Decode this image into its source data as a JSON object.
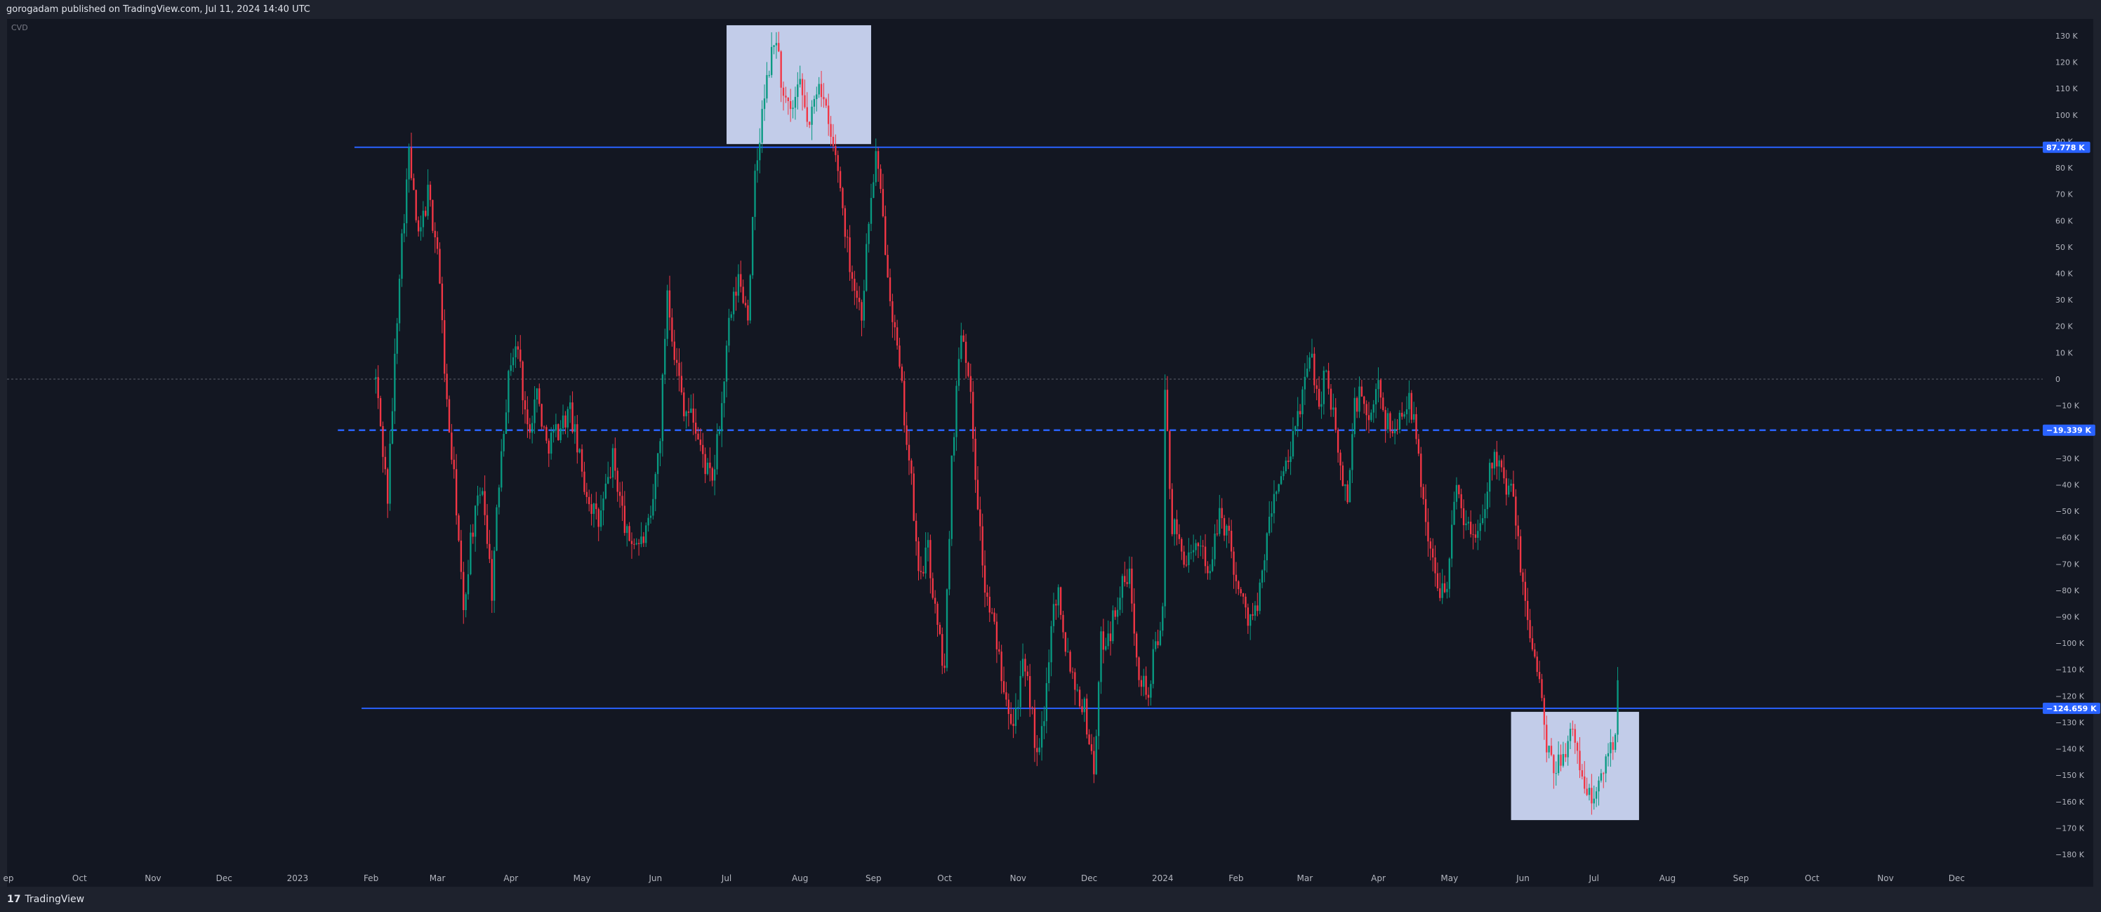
{
  "header": {
    "publish_line": "gorogadam published on TradingView.com, Jul 11, 2024 14:40 UTC"
  },
  "footer": {
    "brand": "TradingView",
    "logo_glyph": "17"
  },
  "chart_data": {
    "type": "candlestick",
    "indicator_label": "CVD",
    "y_unit": "K",
    "ylim": [
      -185,
      137
    ],
    "y_ticks": [
      130,
      120,
      110,
      100,
      90,
      80,
      70,
      60,
      50,
      40,
      30,
      20,
      10,
      0,
      -10,
      -20,
      -30,
      -40,
      -50,
      -60,
      -70,
      -80,
      -90,
      -100,
      -110,
      -120,
      -130,
      -140,
      -150,
      -160,
      -170,
      -180
    ],
    "y_tick_labels": [
      "130 K",
      "120 K",
      "110 K",
      "100 K",
      "90 K",
      "80 K",
      "70 K",
      "60 K",
      "50 K",
      "40 K",
      "30 K",
      "20 K",
      "10 K",
      "0",
      "−10 K",
      "−20 K",
      "−30 K",
      "−40 K",
      "−50 K",
      "−60 K",
      "−70 K",
      "−80 K",
      "−90 K",
      "−100 K",
      "−110 K",
      "−120 K",
      "−130 K",
      "−140 K",
      "−150 K",
      "−160 K",
      "−170 K",
      "−180 K"
    ],
    "x_range": [
      "2022-09-01",
      "2025-01-01"
    ],
    "x_ticks": [
      {
        "date": "2022-09-01",
        "label": "ep"
      },
      {
        "date": "2022-10-01",
        "label": "Oct"
      },
      {
        "date": "2022-11-01",
        "label": "Nov"
      },
      {
        "date": "2022-12-01",
        "label": "Dec"
      },
      {
        "date": "2023-01-01",
        "label": "2023"
      },
      {
        "date": "2023-02-01",
        "label": "Feb"
      },
      {
        "date": "2023-03-01",
        "label": "Mar"
      },
      {
        "date": "2023-04-01",
        "label": "Apr"
      },
      {
        "date": "2023-05-01",
        "label": "May"
      },
      {
        "date": "2023-06-01",
        "label": "Jun"
      },
      {
        "date": "2023-07-01",
        "label": "Jul"
      },
      {
        "date": "2023-08-01",
        "label": "Aug"
      },
      {
        "date": "2023-09-01",
        "label": "Sep"
      },
      {
        "date": "2023-10-01",
        "label": "Oct"
      },
      {
        "date": "2023-11-01",
        "label": "Nov"
      },
      {
        "date": "2023-12-01",
        "label": "Dec"
      },
      {
        "date": "2024-01-01",
        "label": "2024"
      },
      {
        "date": "2024-02-01",
        "label": "Feb"
      },
      {
        "date": "2024-03-01",
        "label": "Mar"
      },
      {
        "date": "2024-04-01",
        "label": "Apr"
      },
      {
        "date": "2024-05-01",
        "label": "May"
      },
      {
        "date": "2024-06-01",
        "label": "Jun"
      },
      {
        "date": "2024-07-01",
        "label": "Jul"
      },
      {
        "date": "2024-08-01",
        "label": "Aug"
      },
      {
        "date": "2024-09-01",
        "label": "Sep"
      },
      {
        "date": "2024-10-01",
        "label": "Oct"
      },
      {
        "date": "2024-11-01",
        "label": "Nov"
      },
      {
        "date": "2024-12-01",
        "label": "Dec"
      }
    ],
    "grid": false,
    "zero_line": {
      "value": 0,
      "style": "dotted",
      "color": "#5d606b"
    },
    "horizontal_lines": [
      {
        "value": 87.778,
        "label": "87.778 K",
        "style": "solid",
        "color": "#2962ff",
        "start": "2023-01-25"
      },
      {
        "value": -19.339,
        "label": "−19.339 K",
        "style": "dashed",
        "color": "#2962ff",
        "start": "2023-01-18"
      },
      {
        "value": -124.659,
        "label": "−124.659 K",
        "style": "solid",
        "color": "#2962ff",
        "start": "2023-01-28"
      }
    ],
    "highlight_boxes": [
      {
        "x_start": "2023-07-01",
        "x_end": "2023-08-31",
        "y_top": 134,
        "y_bottom": 89,
        "color": "#d1dcfb"
      },
      {
        "x_start": "2024-05-27",
        "x_end": "2024-07-20",
        "y_top": -126,
        "y_bottom": -167,
        "color": "#d1dcfb"
      }
    ],
    "colors": {
      "up": "#089981",
      "down": "#f23645"
    },
    "path": [
      [
        "2023-02-03",
        0
      ],
      [
        "2023-02-08",
        -45
      ],
      [
        "2023-02-13",
        42
      ],
      [
        "2023-02-17",
        85
      ],
      [
        "2023-02-21",
        52
      ],
      [
        "2023-02-25",
        70
      ],
      [
        "2023-03-01",
        50
      ],
      [
        "2023-03-05",
        -10
      ],
      [
        "2023-03-09",
        -48
      ],
      [
        "2023-03-12",
        -90
      ],
      [
        "2023-03-15",
        -60
      ],
      [
        "2023-03-20",
        -40
      ],
      [
        "2023-03-24",
        -80
      ],
      [
        "2023-03-28",
        -25
      ],
      [
        "2023-04-01",
        8
      ],
      [
        "2023-04-04",
        12
      ],
      [
        "2023-04-08",
        -20
      ],
      [
        "2023-04-12",
        -5
      ],
      [
        "2023-04-16",
        -25
      ],
      [
        "2023-04-20",
        -20
      ],
      [
        "2023-04-26",
        -12
      ],
      [
        "2023-05-02",
        -40
      ],
      [
        "2023-05-08",
        -55
      ],
      [
        "2023-05-14",
        -30
      ],
      [
        "2023-05-20",
        -60
      ],
      [
        "2023-05-26",
        -62
      ],
      [
        "2023-05-30",
        -55
      ],
      [
        "2023-06-03",
        -20
      ],
      [
        "2023-06-06",
        35
      ],
      [
        "2023-06-09",
        10
      ],
      [
        "2023-06-13",
        -10
      ],
      [
        "2023-06-17",
        -15
      ],
      [
        "2023-06-21",
        -30
      ],
      [
        "2023-06-25",
        -40
      ],
      [
        "2023-06-29",
        -10
      ],
      [
        "2023-07-02",
        20
      ],
      [
        "2023-07-06",
        38
      ],
      [
        "2023-07-10",
        25
      ],
      [
        "2023-07-13",
        75
      ],
      [
        "2023-07-16",
        100
      ],
      [
        "2023-07-19",
        118
      ],
      [
        "2023-07-22",
        130
      ],
      [
        "2023-07-25",
        105
      ],
      [
        "2023-07-28",
        100
      ],
      [
        "2023-08-01",
        110
      ],
      [
        "2023-08-05",
        95
      ],
      [
        "2023-08-09",
        115
      ],
      [
        "2023-08-13",
        95
      ],
      [
        "2023-08-17",
        80
      ],
      [
        "2023-08-21",
        50
      ],
      [
        "2023-08-24",
        35
      ],
      [
        "2023-08-27",
        25
      ],
      [
        "2023-08-30",
        60
      ],
      [
        "2023-09-02",
        85
      ],
      [
        "2023-09-05",
        60
      ],
      [
        "2023-09-09",
        25
      ],
      [
        "2023-09-13",
        -5
      ],
      [
        "2023-09-17",
        -40
      ],
      [
        "2023-09-20",
        -75
      ],
      [
        "2023-09-24",
        -65
      ],
      [
        "2023-09-28",
        -95
      ],
      [
        "2023-10-01",
        -110
      ],
      [
        "2023-10-04",
        -30
      ],
      [
        "2023-10-08",
        20
      ],
      [
        "2023-10-11",
        5
      ],
      [
        "2023-10-14",
        -35
      ],
      [
        "2023-10-18",
        -80
      ],
      [
        "2023-10-22",
        -95
      ],
      [
        "2023-10-26",
        -115
      ],
      [
        "2023-10-30",
        -130
      ],
      [
        "2023-11-03",
        -110
      ],
      [
        "2023-11-06",
        -120
      ],
      [
        "2023-11-09",
        -145
      ],
      [
        "2023-11-12",
        -130
      ],
      [
        "2023-11-15",
        -90
      ],
      [
        "2023-11-18",
        -80
      ],
      [
        "2023-11-21",
        -100
      ],
      [
        "2023-11-25",
        -115
      ],
      [
        "2023-11-29",
        -125
      ],
      [
        "2023-12-03",
        -148
      ],
      [
        "2023-12-06",
        -100
      ],
      [
        "2023-12-10",
        -95
      ],
      [
        "2023-12-14",
        -80
      ],
      [
        "2023-12-18",
        -75
      ],
      [
        "2023-12-22",
        -110
      ],
      [
        "2023-12-26",
        -120
      ],
      [
        "2023-12-29",
        -100
      ],
      [
        "2024-01-01",
        -90
      ],
      [
        "2024-01-02",
        -5
      ],
      [
        "2024-01-05",
        -55
      ],
      [
        "2024-01-09",
        -65
      ],
      [
        "2024-01-13",
        -70
      ],
      [
        "2024-01-17",
        -60
      ],
      [
        "2024-01-21",
        -75
      ],
      [
        "2024-01-25",
        -50
      ],
      [
        "2024-01-29",
        -60
      ],
      [
        "2024-02-02",
        -80
      ],
      [
        "2024-02-06",
        -90
      ],
      [
        "2024-02-10",
        -88
      ],
      [
        "2024-02-14",
        -60
      ],
      [
        "2024-02-18",
        -40
      ],
      [
        "2024-02-22",
        -35
      ],
      [
        "2024-02-26",
        -20
      ],
      [
        "2024-03-01",
        0
      ],
      [
        "2024-03-04",
        8
      ],
      [
        "2024-03-07",
        -10
      ],
      [
        "2024-03-10",
        5
      ],
      [
        "2024-03-13",
        -15
      ],
      [
        "2024-03-16",
        -35
      ],
      [
        "2024-03-19",
        -45
      ],
      [
        "2024-03-22",
        -10
      ],
      [
        "2024-03-25",
        -5
      ],
      [
        "2024-03-28",
        -20
      ],
      [
        "2024-04-01",
        0
      ],
      [
        "2024-04-04",
        -15
      ],
      [
        "2024-04-07",
        -20
      ],
      [
        "2024-04-10",
        -15
      ],
      [
        "2024-04-14",
        -5
      ],
      [
        "2024-04-18",
        -30
      ],
      [
        "2024-04-22",
        -60
      ],
      [
        "2024-04-26",
        -80
      ],
      [
        "2024-04-30",
        -75
      ],
      [
        "2024-05-04",
        -40
      ],
      [
        "2024-05-08",
        -55
      ],
      [
        "2024-05-12",
        -60
      ],
      [
        "2024-05-16",
        -45
      ],
      [
        "2024-05-20",
        -25
      ],
      [
        "2024-05-24",
        -40
      ],
      [
        "2024-05-28",
        -45
      ],
      [
        "2024-06-01",
        -80
      ],
      [
        "2024-06-05",
        -100
      ],
      [
        "2024-06-08",
        -115
      ],
      [
        "2024-06-11",
        -140
      ],
      [
        "2024-06-14",
        -150
      ],
      [
        "2024-06-18",
        -140
      ],
      [
        "2024-06-22",
        -135
      ],
      [
        "2024-06-26",
        -150
      ],
      [
        "2024-06-30",
        -160
      ],
      [
        "2024-07-03",
        -155
      ],
      [
        "2024-07-07",
        -140
      ],
      [
        "2024-07-10",
        -135
      ],
      [
        "2024-07-11",
        -110
      ]
    ]
  }
}
